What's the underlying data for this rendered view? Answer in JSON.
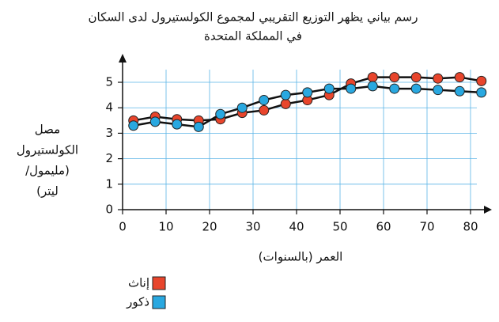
{
  "chart_data": {
    "type": "line",
    "title": [
      "رسم بياني يظهر التوزيع التقريبي لمجموع الكولستيرول لدى السكان",
      "في المملكة المتحدة"
    ],
    "ylabel": [
      "مصل",
      "الكولستيرول",
      "(مليمول/",
      "ليتر)"
    ],
    "xlabel": "العمر (بالسنوات)",
    "x": [
      2.5,
      7.5,
      12.5,
      17.5,
      22.5,
      27.5,
      32.5,
      37.5,
      42.5,
      47.5,
      52.5,
      57.5,
      62.5,
      67.5,
      72.5,
      77.5,
      82.5
    ],
    "series": [
      {
        "name": "إناث",
        "color": "#e8452c",
        "values": [
          3.5,
          3.65,
          3.55,
          3.5,
          3.55,
          3.8,
          3.9,
          4.15,
          4.3,
          4.5,
          4.95,
          5.2,
          5.2,
          5.2,
          5.15,
          5.2,
          5.05
        ]
      },
      {
        "name": "ذكور",
        "color": "#29a8e0",
        "values": [
          3.3,
          3.45,
          3.35,
          3.25,
          3.75,
          4.0,
          4.3,
          4.5,
          4.6,
          4.75,
          4.75,
          4.85,
          4.75,
          4.75,
          4.7,
          4.65,
          4.6
        ]
      }
    ],
    "xlim": [
      0,
      85
    ],
    "xticks": [
      0,
      10,
      20,
      30,
      40,
      50,
      60,
      70,
      80
    ],
    "ylim": [
      0,
      5.6
    ],
    "yticks": [
      0,
      1,
      2,
      3,
      4,
      5
    ],
    "grid": true
  }
}
